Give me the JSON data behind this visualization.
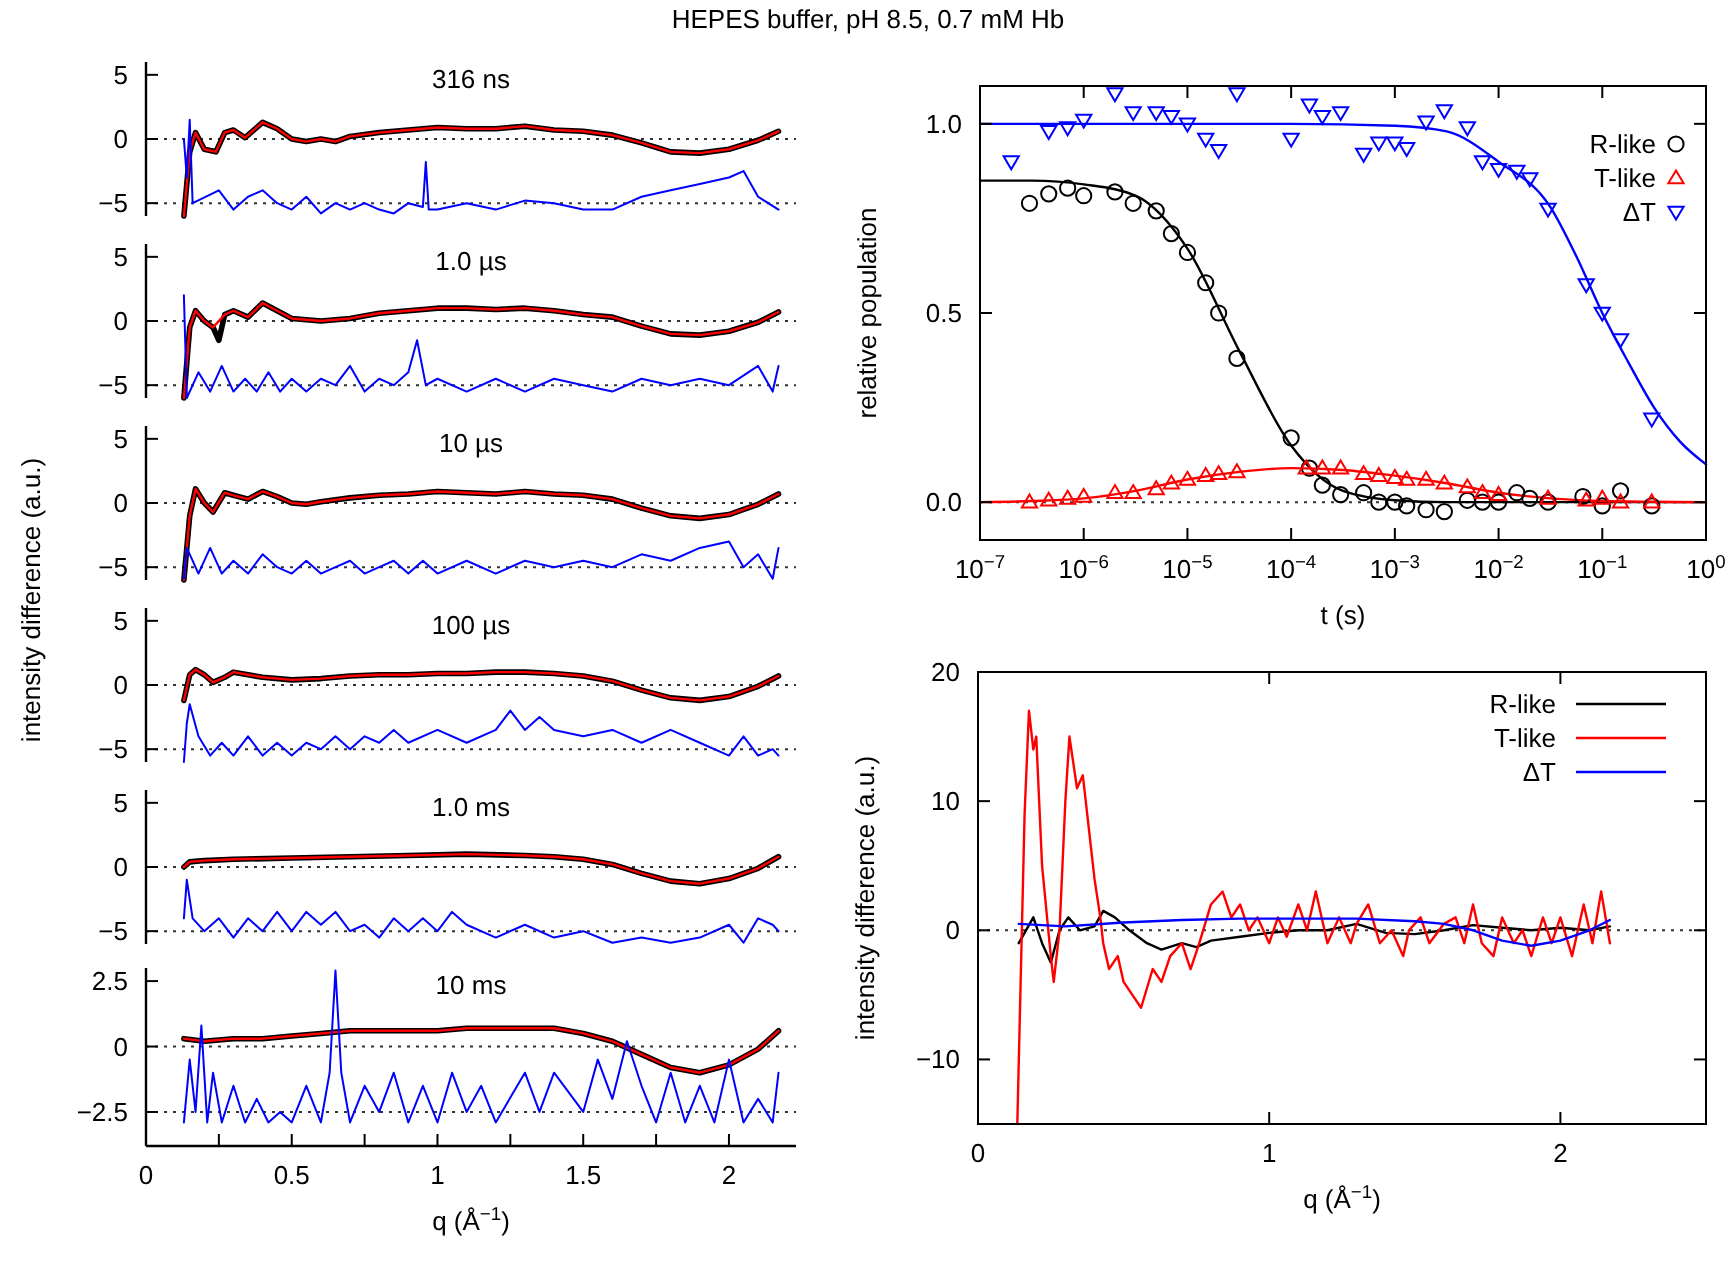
{
  "chart_data": [
    {
      "type": "line",
      "title": "316 ns",
      "annotations": [
        "HEPES buffer, pH 8.5, 0.7 mM Hb"
      ],
      "xlim": [
        0,
        2.23
      ],
      "ylim": [
        -6,
        6
      ],
      "yticks": [
        -5,
        0,
        5
      ],
      "tick_labels": "y",
      "ref_lines": [
        {
          "axis": "y",
          "value": 0,
          "line_style": "dotted"
        },
        {
          "axis": "y",
          "value": -5,
          "line_style": "dotted"
        }
      ],
      "series": [
        {
          "color": "#000000",
          "x": [
            0.13,
            0.15,
            0.17,
            0.2,
            0.24,
            0.27,
            0.3,
            0.34,
            0.4,
            0.45,
            0.5,
            0.55,
            0.6,
            0.65,
            0.7,
            0.8,
            0.9,
            1.0,
            1.1,
            1.2,
            1.3,
            1.4,
            1.5,
            1.6,
            1.7,
            1.8,
            1.9,
            2.0,
            2.1,
            2.17
          ],
          "values": [
            -6,
            -1,
            0.5,
            -0.8,
            -1,
            0.5,
            0.7,
            0.1,
            1.3,
            0.8,
            0,
            -0.2,
            0,
            -0.2,
            0.2,
            0.5,
            0.7,
            0.9,
            0.8,
            0.8,
            1.0,
            0.7,
            0.6,
            0.3,
            -0.3,
            -1.0,
            -1.1,
            -0.8,
            -0.1,
            0.6
          ]
        },
        {
          "color": "#ff0000",
          "x": [
            0.13,
            0.15,
            0.17,
            0.2,
            0.24,
            0.27,
            0.3,
            0.34,
            0.4,
            0.45,
            0.5,
            0.55,
            0.6,
            0.65,
            0.7,
            0.8,
            0.9,
            1.0,
            1.1,
            1.2,
            1.3,
            1.4,
            1.5,
            1.6,
            1.7,
            1.8,
            1.9,
            2.0,
            2.1,
            2.17
          ],
          "values": [
            -6,
            -1,
            0.5,
            -0.8,
            -1,
            0.5,
            0.7,
            0.1,
            1.3,
            0.8,
            0,
            -0.2,
            0,
            -0.2,
            0.2,
            0.5,
            0.7,
            0.9,
            0.8,
            0.8,
            1.0,
            0.7,
            0.6,
            0.3,
            -0.3,
            -1.0,
            -1.1,
            -0.8,
            -0.1,
            0.6
          ]
        },
        {
          "color": "#0000ff",
          "x": [
            0.13,
            0.14,
            0.15,
            0.16,
            0.25,
            0.3,
            0.35,
            0.4,
            0.45,
            0.5,
            0.55,
            0.6,
            0.65,
            0.7,
            0.75,
            0.8,
            0.85,
            0.9,
            0.95,
            0.96,
            0.97,
            1.0,
            1.1,
            1.2,
            1.3,
            1.4,
            1.5,
            1.6,
            1.7,
            1.8,
            1.9,
            2.0,
            2.05,
            2.1,
            2.17
          ],
          "values": [
            0,
            -3,
            1.5,
            -5,
            -4,
            -5.5,
            -4.5,
            -4,
            -5,
            -5.5,
            -4.5,
            -5.8,
            -5,
            -5.5,
            -5,
            -5.5,
            -5.8,
            -5,
            -5.3,
            -1.8,
            -5.5,
            -5.5,
            -5,
            -5.5,
            -4.8,
            -5,
            -5.5,
            -5.5,
            -4.5,
            -4,
            -3.5,
            -3,
            -2.5,
            -4.5,
            -5.5
          ]
        }
      ]
    },
    {
      "type": "line",
      "title": "1.0 µs",
      "xlim": [
        0,
        2.23
      ],
      "ylim": [
        -6,
        6
      ],
      "yticks": [
        -5,
        0,
        5
      ],
      "tick_labels": "y",
      "ref_lines": [
        {
          "axis": "y",
          "value": 0,
          "line_style": "dotted"
        },
        {
          "axis": "y",
          "value": -5,
          "line_style": "dotted"
        }
      ],
      "series": [
        {
          "color": "#000000",
          "x": [
            0.13,
            0.15,
            0.17,
            0.2,
            0.23,
            0.25,
            0.27,
            0.3,
            0.35,
            0.4,
            0.45,
            0.5,
            0.6,
            0.7,
            0.8,
            0.9,
            1.0,
            1.1,
            1.2,
            1.3,
            1.4,
            1.5,
            1.6,
            1.7,
            1.8,
            1.9,
            2.0,
            2.1,
            2.17
          ],
          "values": [
            -6,
            -0.5,
            0.8,
            0,
            -0.5,
            -1.5,
            0.5,
            0.8,
            0.3,
            1.4,
            0.8,
            0.2,
            0,
            0.2,
            0.6,
            0.8,
            1.0,
            1.0,
            0.9,
            1.0,
            0.8,
            0.5,
            0.3,
            -0.4,
            -1.0,
            -1.1,
            -0.8,
            -0.1,
            0.7
          ]
        },
        {
          "color": "#ff0000",
          "x": [
            0.13,
            0.15,
            0.17,
            0.2,
            0.23,
            0.27,
            0.3,
            0.35,
            0.4,
            0.45,
            0.5,
            0.6,
            0.7,
            0.8,
            0.9,
            1.0,
            1.1,
            1.2,
            1.3,
            1.4,
            1.5,
            1.6,
            1.7,
            1.8,
            1.9,
            2.0,
            2.1,
            2.17
          ],
          "values": [
            -6,
            -0.5,
            0.8,
            0,
            -0.5,
            0.5,
            0.8,
            0.3,
            1.4,
            0.8,
            0.2,
            0,
            0.2,
            0.6,
            0.8,
            1.0,
            1.0,
            0.9,
            1.0,
            0.8,
            0.5,
            0.3,
            -0.4,
            -1.0,
            -1.1,
            -0.8,
            -0.1,
            0.7
          ]
        },
        {
          "color": "#0000ff",
          "x": [
            0.13,
            0.14,
            0.18,
            0.22,
            0.26,
            0.3,
            0.34,
            0.38,
            0.42,
            0.46,
            0.5,
            0.55,
            0.6,
            0.65,
            0.7,
            0.75,
            0.8,
            0.85,
            0.9,
            0.93,
            0.96,
            1.0,
            1.1,
            1.2,
            1.3,
            1.4,
            1.5,
            1.6,
            1.7,
            1.8,
            1.9,
            2.0,
            2.1,
            2.15,
            2.17
          ],
          "values": [
            2,
            -6,
            -4,
            -5.5,
            -3.5,
            -5.5,
            -4.5,
            -5.5,
            -4,
            -5.5,
            -4.5,
            -5.5,
            -4.5,
            -5,
            -3.5,
            -5.5,
            -4.5,
            -5,
            -4,
            -1.5,
            -5,
            -4.5,
            -5.5,
            -4.5,
            -5.5,
            -4.5,
            -5,
            -5.5,
            -4.5,
            -5,
            -4.5,
            -5,
            -3.5,
            -5.5,
            -3.5
          ]
        }
      ]
    },
    {
      "type": "line",
      "title": "10 µs",
      "xlim": [
        0,
        2.23
      ],
      "ylim": [
        -6,
        6
      ],
      "yticks": [
        -5,
        0,
        5
      ],
      "tick_labels": "y",
      "ref_lines": [
        {
          "axis": "y",
          "value": 0,
          "line_style": "dotted"
        },
        {
          "axis": "y",
          "value": -5,
          "line_style": "dotted"
        }
      ],
      "series": [
        {
          "color": "#000000",
          "x": [
            0.13,
            0.15,
            0.17,
            0.2,
            0.23,
            0.27,
            0.3,
            0.35,
            0.4,
            0.45,
            0.5,
            0.55,
            0.6,
            0.7,
            0.8,
            0.9,
            1.0,
            1.1,
            1.2,
            1.3,
            1.4,
            1.5,
            1.6,
            1.7,
            1.8,
            1.9,
            2.0,
            2.1,
            2.17
          ],
          "values": [
            -6,
            -1,
            1.1,
            0,
            -0.7,
            0.8,
            0.6,
            0.3,
            0.9,
            0.5,
            0,
            -0.1,
            0.1,
            0.4,
            0.6,
            0.7,
            0.9,
            0.8,
            0.7,
            0.9,
            0.7,
            0.6,
            0.3,
            -0.4,
            -1.0,
            -1.2,
            -0.9,
            -0.1,
            0.7
          ]
        },
        {
          "color": "#ff0000",
          "x": [
            0.13,
            0.15,
            0.17,
            0.2,
            0.23,
            0.27,
            0.3,
            0.35,
            0.4,
            0.45,
            0.5,
            0.55,
            0.6,
            0.7,
            0.8,
            0.9,
            1.0,
            1.1,
            1.2,
            1.3,
            1.4,
            1.5,
            1.6,
            1.7,
            1.8,
            1.9,
            2.0,
            2.1,
            2.17
          ],
          "values": [
            -6,
            -1,
            1.1,
            0,
            -0.7,
            0.8,
            0.6,
            0.3,
            0.9,
            0.5,
            0,
            -0.1,
            0.1,
            0.4,
            0.6,
            0.7,
            0.9,
            0.8,
            0.7,
            0.9,
            0.7,
            0.6,
            0.3,
            -0.4,
            -1.0,
            -1.2,
            -0.9,
            -0.1,
            0.7
          ]
        },
        {
          "color": "#0000ff",
          "x": [
            0.13,
            0.14,
            0.18,
            0.22,
            0.26,
            0.3,
            0.35,
            0.4,
            0.45,
            0.5,
            0.55,
            0.6,
            0.65,
            0.7,
            0.75,
            0.8,
            0.85,
            0.9,
            0.95,
            1.0,
            1.1,
            1.2,
            1.3,
            1.4,
            1.5,
            1.6,
            1.7,
            1.8,
            1.9,
            2.0,
            2.05,
            2.1,
            2.15,
            2.17
          ],
          "values": [
            -5.9,
            -3.5,
            -5.5,
            -3.5,
            -5.5,
            -4.5,
            -5.5,
            -4,
            -5,
            -5.5,
            -4.5,
            -5.5,
            -5,
            -4.5,
            -5.5,
            -5,
            -4.5,
            -5.5,
            -4.5,
            -5.5,
            -4.5,
            -5.5,
            -4.5,
            -5,
            -4.5,
            -5,
            -4,
            -4.5,
            -3.5,
            -3,
            -5,
            -4,
            -5.9,
            -3.5
          ]
        }
      ]
    },
    {
      "type": "line",
      "title": "100 µs",
      "ylabel": "intensity difference (a.u.)",
      "xlim": [
        0,
        2.23
      ],
      "ylim": [
        -6,
        6
      ],
      "yticks": [
        -5,
        0,
        5
      ],
      "tick_labels": "y",
      "ref_lines": [
        {
          "axis": "y",
          "value": 0,
          "line_style": "dotted"
        },
        {
          "axis": "y",
          "value": -5,
          "line_style": "dotted"
        }
      ],
      "series": [
        {
          "color": "#000000",
          "x": [
            0.13,
            0.15,
            0.17,
            0.2,
            0.23,
            0.27,
            0.3,
            0.35,
            0.4,
            0.5,
            0.6,
            0.7,
            0.8,
            0.9,
            1.0,
            1.1,
            1.2,
            1.3,
            1.4,
            1.5,
            1.6,
            1.7,
            1.8,
            1.9,
            2.0,
            2.1,
            2.17
          ],
          "values": [
            -1.2,
            0.8,
            1.2,
            0.8,
            0.2,
            0.6,
            1.0,
            0.8,
            0.6,
            0.4,
            0.5,
            0.7,
            0.8,
            0.8,
            0.9,
            0.9,
            1.0,
            1.0,
            0.9,
            0.7,
            0.3,
            -0.4,
            -1.0,
            -1.2,
            -0.9,
            -0.1,
            0.7
          ]
        },
        {
          "color": "#ff0000",
          "x": [
            0.13,
            0.15,
            0.17,
            0.2,
            0.23,
            0.27,
            0.3,
            0.35,
            0.4,
            0.5,
            0.6,
            0.7,
            0.8,
            0.9,
            1.0,
            1.1,
            1.2,
            1.3,
            1.4,
            1.5,
            1.6,
            1.7,
            1.8,
            1.9,
            2.0,
            2.1,
            2.17
          ],
          "values": [
            -1.2,
            0.8,
            1.2,
            0.8,
            0.2,
            0.6,
            1.0,
            0.8,
            0.6,
            0.4,
            0.5,
            0.7,
            0.8,
            0.8,
            0.9,
            0.9,
            1.0,
            1.0,
            0.9,
            0.7,
            0.3,
            -0.4,
            -1.0,
            -1.2,
            -0.9,
            -0.1,
            0.7
          ]
        },
        {
          "color": "#0000ff",
          "x": [
            0.13,
            0.14,
            0.15,
            0.18,
            0.22,
            0.26,
            0.3,
            0.35,
            0.4,
            0.45,
            0.5,
            0.55,
            0.6,
            0.65,
            0.7,
            0.75,
            0.8,
            0.85,
            0.9,
            1.0,
            1.1,
            1.2,
            1.25,
            1.3,
            1.35,
            1.4,
            1.5,
            1.6,
            1.7,
            1.8,
            1.9,
            2.0,
            2.05,
            2.1,
            2.15,
            2.17
          ],
          "values": [
            -6,
            -3,
            -1.5,
            -4,
            -5.5,
            -4.5,
            -5.5,
            -4,
            -5.5,
            -4.5,
            -5.5,
            -4.5,
            -5,
            -4,
            -5,
            -4,
            -4.5,
            -3.5,
            -4.5,
            -3.5,
            -4.5,
            -3.5,
            -2,
            -3.5,
            -2.5,
            -3.5,
            -4,
            -3.5,
            -4.5,
            -3.5,
            -4.5,
            -5.5,
            -4,
            -5.5,
            -5,
            -5.5
          ]
        }
      ]
    },
    {
      "type": "line",
      "title": "1.0 ms",
      "xlim": [
        0,
        2.23
      ],
      "ylim": [
        -6,
        6
      ],
      "yticks": [
        -5,
        0,
        5
      ],
      "tick_labels": "y",
      "ref_lines": [
        {
          "axis": "y",
          "value": 0,
          "line_style": "dotted"
        },
        {
          "axis": "y",
          "value": -5,
          "line_style": "dotted"
        }
      ],
      "series": [
        {
          "color": "#000000",
          "x": [
            0.13,
            0.15,
            0.2,
            0.3,
            0.5,
            0.7,
            0.9,
            1.1,
            1.3,
            1.4,
            1.5,
            1.6,
            1.7,
            1.8,
            1.9,
            2.0,
            2.1,
            2.17
          ],
          "values": [
            0,
            0.4,
            0.5,
            0.6,
            0.7,
            0.8,
            0.9,
            1.0,
            0.9,
            0.8,
            0.6,
            0.2,
            -0.5,
            -1.1,
            -1.3,
            -0.9,
            -0.1,
            0.8
          ]
        },
        {
          "color": "#ff0000",
          "x": [
            0.13,
            0.15,
            0.2,
            0.3,
            0.5,
            0.7,
            0.9,
            1.1,
            1.3,
            1.4,
            1.5,
            1.6,
            1.7,
            1.8,
            1.9,
            2.0,
            2.1,
            2.17
          ],
          "values": [
            0,
            0.4,
            0.5,
            0.6,
            0.7,
            0.8,
            0.9,
            1.0,
            0.9,
            0.8,
            0.6,
            0.2,
            -0.5,
            -1.1,
            -1.3,
            -0.9,
            -0.1,
            0.8
          ]
        },
        {
          "color": "#0000ff",
          "x": [
            0.13,
            0.14,
            0.16,
            0.2,
            0.25,
            0.3,
            0.35,
            0.4,
            0.45,
            0.5,
            0.55,
            0.6,
            0.65,
            0.7,
            0.75,
            0.8,
            0.85,
            0.9,
            0.95,
            1.0,
            1.05,
            1.1,
            1.2,
            1.3,
            1.4,
            1.5,
            1.6,
            1.7,
            1.8,
            1.9,
            2.0,
            2.05,
            2.1,
            2.15,
            2.17
          ],
          "values": [
            -4,
            -1,
            -4,
            -5,
            -4,
            -5.5,
            -4,
            -5,
            -3.5,
            -5,
            -3.5,
            -4.5,
            -3.5,
            -5,
            -4.5,
            -5.5,
            -4,
            -5,
            -4,
            -5,
            -3.5,
            -4.5,
            -5.5,
            -4.5,
            -5.5,
            -5,
            -5.9,
            -5.5,
            -5.9,
            -5.5,
            -4.5,
            -5.9,
            -4,
            -4.5,
            -5
          ]
        }
      ]
    },
    {
      "type": "line",
      "title": "10 ms",
      "xlabel": "q (Å$^{−1}$)",
      "xlim": [
        0,
        2.23
      ],
      "ylim": [
        -3.8,
        3
      ],
      "xticks": [
        0,
        {
          "value": 0.25,
          "label": null
        },
        0.5,
        {
          "value": 0.75,
          "label": null
        },
        1,
        {
          "value": 1.25,
          "label": null
        },
        1.5,
        {
          "value": 1.75,
          "label": null
        },
        2
      ],
      "yticks": [
        -2.5,
        0,
        2.5
      ],
      "ref_lines": [
        {
          "axis": "y",
          "value": 0,
          "line_style": "dotted"
        },
        {
          "axis": "y",
          "value": -2.5,
          "line_style": "dotted"
        }
      ],
      "series": [
        {
          "color": "#000000",
          "x": [
            0.13,
            0.2,
            0.3,
            0.4,
            0.5,
            0.6,
            0.7,
            0.8,
            0.9,
            1.0,
            1.1,
            1.2,
            1.3,
            1.4,
            1.5,
            1.6,
            1.7,
            1.8,
            1.9,
            2.0,
            2.1,
            2.17
          ],
          "values": [
            0.3,
            0.2,
            0.3,
            0.3,
            0.4,
            0.5,
            0.6,
            0.6,
            0.6,
            0.6,
            0.7,
            0.7,
            0.7,
            0.7,
            0.5,
            0.2,
            -0.3,
            -0.8,
            -1.0,
            -0.7,
            -0.1,
            0.6
          ]
        },
        {
          "color": "#ff0000",
          "x": [
            0.13,
            0.2,
            0.3,
            0.4,
            0.5,
            0.6,
            0.7,
            0.8,
            0.9,
            1.0,
            1.1,
            1.2,
            1.3,
            1.4,
            1.5,
            1.6,
            1.7,
            1.8,
            1.9,
            2.0,
            2.1,
            2.17
          ],
          "values": [
            0.3,
            0.2,
            0.3,
            0.3,
            0.4,
            0.5,
            0.6,
            0.6,
            0.6,
            0.6,
            0.7,
            0.7,
            0.7,
            0.7,
            0.5,
            0.2,
            -0.3,
            -0.8,
            -1.0,
            -0.7,
            -0.1,
            0.6
          ]
        },
        {
          "color": "#0000ff",
          "x": [
            0.13,
            0.15,
            0.17,
            0.19,
            0.21,
            0.23,
            0.26,
            0.3,
            0.34,
            0.38,
            0.42,
            0.46,
            0.5,
            0.55,
            0.6,
            0.63,
            0.65,
            0.67,
            0.7,
            0.75,
            0.8,
            0.85,
            0.9,
            0.95,
            1.0,
            1.05,
            1.1,
            1.15,
            1.2,
            1.3,
            1.35,
            1.4,
            1.5,
            1.55,
            1.6,
            1.65,
            1.7,
            1.75,
            1.8,
            1.85,
            1.9,
            1.95,
            2.0,
            2.05,
            2.1,
            2.15,
            2.17
          ],
          "values": [
            -2.9,
            -0.5,
            -2.5,
            0.8,
            -2.9,
            -1,
            -2.9,
            -1.5,
            -2.9,
            -2,
            -2.9,
            -2.5,
            -2.9,
            -1.5,
            -2.9,
            -1,
            2.9,
            -1,
            -2.9,
            -1.5,
            -2.5,
            -1,
            -2.9,
            -1.5,
            -2.9,
            -1,
            -2.5,
            -1.5,
            -2.9,
            -1,
            -2.5,
            -1,
            -2.5,
            -0.5,
            -2,
            0.2,
            -1.5,
            -2.9,
            -1,
            -2.9,
            -1.5,
            -2.9,
            -0.5,
            -2.9,
            -2,
            -2.9,
            -1
          ]
        }
      ]
    },
    {
      "type": "scatter",
      "xlabel": "t (s)",
      "ylabel": "relative population",
      "log": "x",
      "xlim": [
        1e-07,
        1
      ],
      "ylim": [
        -0.1,
        1.1
      ],
      "xticks": [
        {
          "value": 1e-07,
          "label": "10$^{−7}$"
        },
        {
          "value": 1e-06,
          "label": "10$^{−6}$"
        },
        {
          "value": 1e-05,
          "label": "10$^{−5}$"
        },
        {
          "value": 0.0001,
          "label": "10$^{−4}$"
        },
        {
          "value": 0.001,
          "label": "10$^{−3}$"
        },
        {
          "value": 0.01,
          "label": "10$^{−2}$"
        },
        {
          "value": 0.1,
          "label": "10$^{−1}$"
        },
        {
          "value": 1,
          "label": "10$^{0}$"
        }
      ],
      "yticks": [
        {
          "value": 0,
          "label": "0.0"
        },
        {
          "value": 0.5,
          "label": "0.5"
        },
        {
          "value": 1,
          "label": "1.0"
        }
      ],
      "legend": "top right",
      "ref_lines": [
        {
          "axis": "y",
          "value": 0,
          "line_style": "dotted"
        }
      ],
      "series": [
        {
          "type": "line",
          "color": "#000000",
          "x": [
            1e-07,
            3.16e-07,
            1e-06,
            3.16e-06,
            1e-05,
            3.16e-05,
            0.0001,
            0.000316,
            0.001,
            0.00316,
            0.01,
            0.0316,
            0.1,
            0.316,
            1
          ],
          "values": [
            0.85,
            0.85,
            0.84,
            0.81,
            0.67,
            0.4,
            0.15,
            0.03,
            0.005,
            0,
            0,
            0,
            0,
            0,
            0
          ]
        },
        {
          "type": "line",
          "color": "#ff0000",
          "x": [
            1e-07,
            3.16e-07,
            1e-06,
            3.16e-06,
            1e-05,
            3.16e-05,
            0.0001,
            0.000316,
            0.001,
            0.00316,
            0.01,
            0.0316,
            0.1,
            0.316,
            1
          ],
          "values": [
            0,
            0.003,
            0.01,
            0.03,
            0.06,
            0.08,
            0.09,
            0.085,
            0.07,
            0.05,
            0.025,
            0.01,
            0.003,
            0.001,
            0
          ]
        },
        {
          "type": "line",
          "color": "#0000ff",
          "x": [
            1e-07,
            1e-06,
            1e-05,
            0.0001,
            0.001,
            0.00316,
            0.01,
            0.0316,
            0.0562,
            0.1,
            0.178,
            0.316,
            0.562,
            1
          ],
          "values": [
            1,
            1,
            1,
            1,
            0.995,
            0.98,
            0.9,
            0.78,
            0.65,
            0.5,
            0.37,
            0.25,
            0.16,
            0.1
          ]
        },
        {
          "name": "R-like",
          "color": "#000000",
          "marker": "circle",
          "x": [
            3e-07,
            4.6e-07,
            7e-07,
            1e-06,
            2e-06,
            3e-06,
            5e-06,
            7e-06,
            1e-05,
            1.5e-05,
            2e-05,
            3e-05,
            0.0001,
            0.00015,
            0.0002,
            0.0003,
            0.0005,
            0.0007,
            0.001,
            0.0013,
            0.002,
            0.003,
            0.005,
            0.007,
            0.01,
            0.015,
            0.02,
            0.03,
            0.065,
            0.1,
            0.15,
            0.3
          ],
          "values": [
            0.79,
            0.815,
            0.83,
            0.81,
            0.82,
            0.79,
            0.77,
            0.71,
            0.66,
            0.58,
            0.5,
            0.38,
            0.17,
            0.09,
            0.045,
            0.02,
            0.025,
            0,
            0,
            -0.01,
            -0.02,
            -0.025,
            0.005,
            0,
            0,
            0.025,
            0.01,
            0,
            0.015,
            -0.01,
            0.03,
            -0.01
          ]
        },
        {
          "name": "T-like",
          "color": "#ff0000",
          "marker": "triangle",
          "x": [
            3e-07,
            4.6e-07,
            7e-07,
            1e-06,
            2e-06,
            3e-06,
            5e-06,
            7e-06,
            1e-05,
            1.5e-05,
            2e-05,
            3e-05,
            0.00014,
            0.0002,
            0.0003,
            0.0005,
            0.0007,
            0.001,
            0.0013,
            0.002,
            0.003,
            0.005,
            0.007,
            0.01,
            0.03,
            0.07,
            0.1,
            0.15,
            0.3
          ],
          "values": [
            0,
            0.005,
            0.01,
            0.015,
            0.025,
            0.025,
            0.035,
            0.05,
            0.06,
            0.07,
            0.075,
            0.08,
            0.09,
            0.09,
            0.09,
            0.075,
            0.07,
            0.065,
            0.06,
            0.06,
            0.05,
            0.04,
            0.025,
            0.02,
            0.01,
            0.005,
            0.01,
            0,
            0
          ]
        },
        {
          "name": "ΔT",
          "color": "#0000ff",
          "marker": "triangle-down",
          "x": [
            2e-07,
            4.6e-07,
            7e-07,
            1e-06,
            2e-06,
            3e-06,
            5e-06,
            7e-06,
            1e-05,
            1.5e-05,
            2e-05,
            3e-05,
            0.0001,
            0.00015,
            0.0002,
            0.0003,
            0.0005,
            0.0007,
            0.001,
            0.0013,
            0.002,
            0.003,
            0.005,
            0.007,
            0.01,
            0.015,
            0.02,
            0.03,
            0.07,
            0.1,
            0.15,
            0.3
          ],
          "values": [
            0.9,
            0.98,
            0.99,
            1.01,
            1.08,
            1.03,
            1.03,
            1.02,
            1.0,
            0.96,
            0.93,
            1.08,
            0.96,
            1.05,
            1.02,
            1.03,
            0.92,
            0.95,
            0.95,
            0.935,
            1.005,
            1.035,
            0.99,
            0.9,
            0.88,
            0.875,
            0.855,
            0.775,
            0.575,
            0.5,
            0.43,
            0.22
          ]
        }
      ]
    },
    {
      "type": "line",
      "xlabel": "q (Å$^{−1}$)",
      "ylabel": "intensity difference (a.u.)",
      "xlim": [
        0,
        2.5
      ],
      "ylim": [
        -15,
        20
      ],
      "xticks": [
        0,
        1,
        2
      ],
      "yticks": [
        -10,
        0,
        10,
        20
      ],
      "legend": "top right",
      "ref_lines": [
        {
          "axis": "y",
          "value": 0,
          "line_style": "dotted"
        }
      ],
      "series": [
        {
          "name": "R-like",
          "color": "#000000",
          "x": [
            0.14,
            0.19,
            0.22,
            0.25,
            0.28,
            0.31,
            0.35,
            0.4,
            0.43,
            0.47,
            0.52,
            0.58,
            0.63,
            0.7,
            0.75,
            0.8,
            0.9,
            1.0,
            1.1,
            1.2,
            1.3,
            1.4,
            1.5,
            1.6,
            1.7,
            1.8,
            1.9,
            2.0,
            2.1,
            2.17
          ],
          "values": [
            -1,
            1,
            -1,
            -2.5,
            0,
            1,
            0,
            0.3,
            1.5,
            1,
            0,
            -1,
            -1.5,
            -1,
            -1.3,
            -0.8,
            -0.5,
            -0.2,
            0,
            0,
            0.5,
            -0.2,
            -0.3,
            0,
            0.4,
            0.2,
            0,
            0.2,
            0,
            0.3
          ]
        },
        {
          "name": "T-like",
          "color": "#ff0000",
          "x": [
            0.135,
            0.16,
            0.175,
            0.19,
            0.2,
            0.22,
            0.25,
            0.26,
            0.28,
            0.3,
            0.314,
            0.34,
            0.36,
            0.38,
            0.4,
            0.42,
            0.43,
            0.45,
            0.48,
            0.5,
            0.53,
            0.56,
            0.6,
            0.63,
            0.66,
            0.7,
            0.73,
            0.76,
            0.8,
            0.84,
            0.87,
            0.9,
            0.93,
            0.96,
            1.0,
            1.03,
            1.06,
            1.1,
            1.13,
            1.16,
            1.2,
            1.24,
            1.28,
            1.3,
            1.34,
            1.38,
            1.42,
            1.46,
            1.48,
            1.52,
            1.55,
            1.6,
            1.64,
            1.67,
            1.7,
            1.73,
            1.77,
            1.8,
            1.84,
            1.87,
            1.9,
            1.94,
            1.97,
            2.0,
            2.04,
            2.08,
            2.11,
            2.14,
            2.17
          ],
          "values": [
            -15,
            9,
            17,
            14,
            15,
            5,
            -2,
            -4,
            0,
            10,
            15,
            11,
            12,
            8,
            4,
            1,
            -1,
            -3,
            -2,
            -4,
            -5,
            -6,
            -3,
            -4,
            -2,
            -1,
            -3,
            -1,
            2,
            3,
            1,
            2,
            0,
            1,
            -1,
            1,
            -0.5,
            2,
            0,
            3,
            -1,
            1,
            -1,
            0.5,
            2,
            -1,
            0,
            -2,
            0,
            1,
            -1,
            0.5,
            1,
            -1,
            2,
            -1,
            -2,
            1,
            -1,
            0,
            -2,
            1,
            -1,
            1,
            -2,
            2,
            -1,
            3,
            -1
          ]
        },
        {
          "name": "ΔT",
          "color": "#0000ff",
          "x": [
            0.14,
            0.3,
            0.5,
            0.7,
            0.9,
            1.1,
            1.3,
            1.5,
            1.6,
            1.7,
            1.8,
            1.9,
            2.0,
            2.1,
            2.17
          ],
          "values": [
            0.5,
            0.3,
            0.6,
            0.8,
            0.9,
            0.9,
            0.9,
            0.7,
            0.5,
            0,
            -0.8,
            -1.2,
            -0.8,
            0,
            0.8
          ]
        }
      ]
    }
  ]
}
